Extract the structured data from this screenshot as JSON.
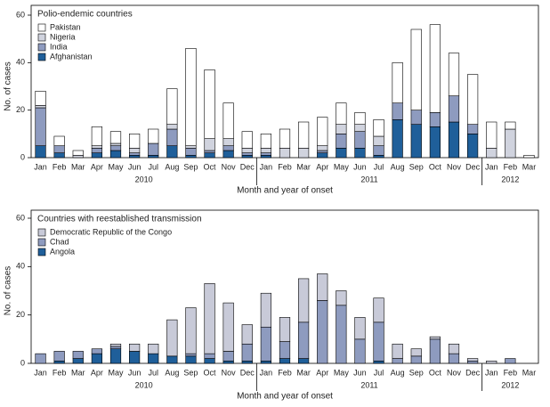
{
  "chart_data": [
    {
      "type": "stacked-bar",
      "legend_title": "Polio-endemic countries",
      "y_label": "No. of cases",
      "x_label": "Month and year of onset",
      "categories": [
        "Jan",
        "Feb",
        "Mar",
        "Apr",
        "May",
        "Jun",
        "Jul",
        "Aug",
        "Sep",
        "Oct",
        "Nov",
        "Dec",
        "Jan",
        "Feb",
        "Mar",
        "Apr",
        "May",
        "Jun",
        "Jul",
        "Aug",
        "Sep",
        "Oct",
        "Nov",
        "Dec",
        "Jan",
        "Feb",
        "Mar"
      ],
      "years": [
        "2010",
        "2011",
        "2012"
      ],
      "ylim": [
        0,
        60
      ],
      "yticks": [
        0,
        20,
        40,
        60
      ],
      "legend": "upper left",
      "series": [
        {
          "name": "Afghanistan",
          "color": "#1f5f9a",
          "values": [
            5,
            2,
            0,
            2,
            3,
            1,
            1,
            5,
            1,
            2,
            3,
            1,
            1,
            0,
            0,
            2,
            4,
            4,
            1,
            16,
            14,
            13,
            15,
            10,
            0,
            0,
            0
          ]
        },
        {
          "name": "India",
          "color": "#8e9bbf",
          "values": [
            16,
            3,
            0,
            2,
            2,
            1,
            5,
            7,
            3,
            1,
            2,
            1,
            1,
            0,
            0,
            1,
            6,
            7,
            4,
            7,
            6,
            6,
            11,
            4,
            0,
            0,
            0
          ]
        },
        {
          "name": "Nigeria",
          "color": "#d0d3de",
          "values": [
            1,
            0,
            1,
            1,
            1,
            2,
            0,
            2,
            1,
            5,
            3,
            2,
            2,
            4,
            4,
            2,
            4,
            3,
            4,
            0,
            0,
            0,
            0,
            0,
            4,
            12,
            0
          ]
        },
        {
          "name": "Pakistan",
          "color": "#ffffff",
          "values": [
            6,
            4,
            2,
            8,
            5,
            6,
            6,
            15,
            41,
            29,
            15,
            7,
            6,
            8,
            11,
            12,
            9,
            5,
            7,
            17,
            34,
            37,
            18,
            21,
            11,
            3,
            1
          ]
        }
      ]
    },
    {
      "type": "stacked-bar",
      "legend_title": "Countries with reestablished transmission",
      "y_label": "No. of cases",
      "x_label": "Month and year of onset",
      "categories": [
        "Jan",
        "Feb",
        "Mar",
        "Apr",
        "May",
        "Jun",
        "Jul",
        "Aug",
        "Sep",
        "Oct",
        "Nov",
        "Dec",
        "Jan",
        "Feb",
        "Mar",
        "Apr",
        "May",
        "Jun",
        "Jul",
        "Aug",
        "Sep",
        "Oct",
        "Nov",
        "Dec",
        "Jan",
        "Feb",
        "Mar"
      ],
      "years": [
        "2010",
        "2011",
        "2012"
      ],
      "ylim": [
        0,
        60
      ],
      "yticks": [
        0,
        20,
        40,
        60
      ],
      "legend": "upper left",
      "series": [
        {
          "name": "Angola",
          "color": "#1f5f9a",
          "values": [
            0,
            1,
            2,
            4,
            6,
            5,
            4,
            3,
            3,
            2,
            1,
            1,
            1,
            2,
            2,
            0,
            0,
            0,
            1,
            0,
            0,
            0,
            0,
            0,
            0,
            0,
            0
          ]
        },
        {
          "name": "Chad",
          "color": "#8e9bbf",
          "values": [
            4,
            4,
            3,
            2,
            1,
            0,
            0,
            0,
            1,
            2,
            4,
            7,
            14,
            7,
            15,
            26,
            24,
            10,
            16,
            2,
            3,
            10,
            4,
            1,
            0,
            2,
            0
          ]
        },
        {
          "name": "Democratic Republic of the Congo",
          "color": "#c8cad8",
          "values": [
            0,
            0,
            0,
            0,
            1,
            3,
            4,
            15,
            19,
            29,
            20,
            8,
            14,
            10,
            18,
            11,
            6,
            9,
            10,
            6,
            3,
            1,
            4,
            1,
            1,
            0,
            0
          ]
        }
      ]
    }
  ]
}
